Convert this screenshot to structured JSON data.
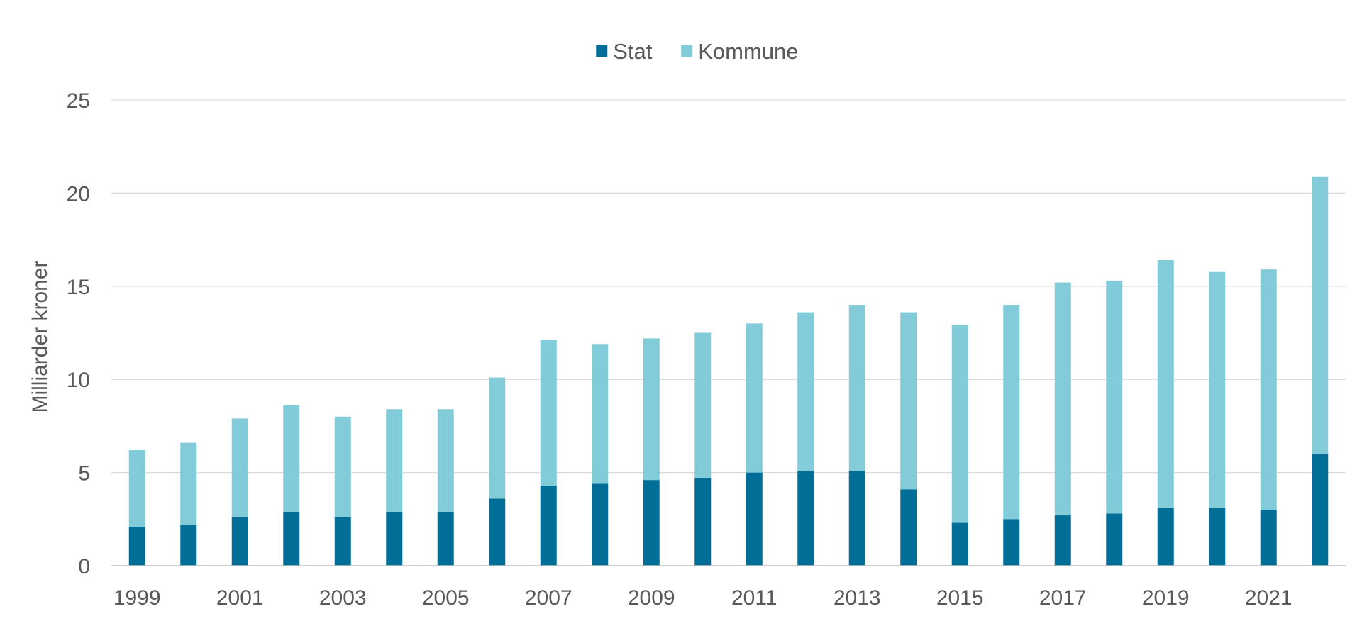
{
  "chart_data": {
    "type": "bar",
    "stacked": true,
    "title": "",
    "xlabel": "",
    "ylabel": "Milliarder kroner",
    "ylim": [
      0,
      25
    ],
    "yticks": [
      0,
      5,
      10,
      15,
      20,
      25
    ],
    "grid": true,
    "legend_position": "top-center",
    "categories": [
      "1999",
      "2000",
      "2001",
      "2002",
      "2003",
      "2004",
      "2005",
      "2006",
      "2007",
      "2008",
      "2009",
      "2010",
      "2011",
      "2012",
      "2013",
      "2014",
      "2015",
      "2016",
      "2017",
      "2018",
      "2019",
      "2020",
      "2021",
      "2022"
    ],
    "x_tick_labels": [
      "1999",
      "",
      "2001",
      "",
      "2003",
      "",
      "2005",
      "",
      "2007",
      "",
      "2009",
      "",
      "2011",
      "",
      "2013",
      "",
      "2015",
      "",
      "2017",
      "",
      "2019",
      "",
      "2021",
      ""
    ],
    "series": [
      {
        "name": "Stat",
        "color": "#006E96",
        "values": [
          2.1,
          2.2,
          2.6,
          2.9,
          2.6,
          2.9,
          2.9,
          3.6,
          4.3,
          4.4,
          4.6,
          4.7,
          5.0,
          5.1,
          5.1,
          4.1,
          2.3,
          2.5,
          2.7,
          2.8,
          3.1,
          3.1,
          3.0,
          6.0
        ]
      },
      {
        "name": "Kommune",
        "color": "#82CBD9",
        "values": [
          4.1,
          4.4,
          5.3,
          5.7,
          5.4,
          5.5,
          5.5,
          6.5,
          7.8,
          7.5,
          7.6,
          7.8,
          8.0,
          8.5,
          8.9,
          9.5,
          10.6,
          11.5,
          12.5,
          12.5,
          13.3,
          12.7,
          12.9,
          14.9
        ]
      }
    ],
    "colors": {
      "gridline": "#D9D9D9",
      "axis": "#BFBFBF",
      "text": "#595959"
    }
  }
}
